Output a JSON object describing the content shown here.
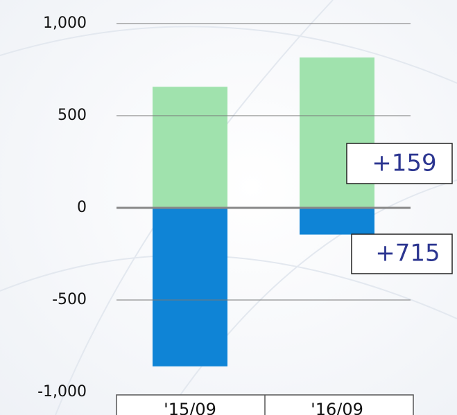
{
  "chart_data": {
    "type": "bar",
    "stacked": true,
    "categories": [
      "'15/09",
      "'16/09"
    ],
    "series": [
      {
        "color": "#a0e2ad",
        "values": [
          657,
          816
        ]
      },
      {
        "color": "#0f84d6",
        "values": [
          -860,
          -145
        ]
      }
    ],
    "ylim": [
      -1000,
      1000
    ],
    "yticks": [
      {
        "value": 1000,
        "label": "1,000"
      },
      500,
      0,
      -500,
      {
        "value": -1000,
        "label": "-1,000"
      }
    ],
    "grid": true,
    "annotations": [
      "+159",
      "+715"
    ]
  }
}
